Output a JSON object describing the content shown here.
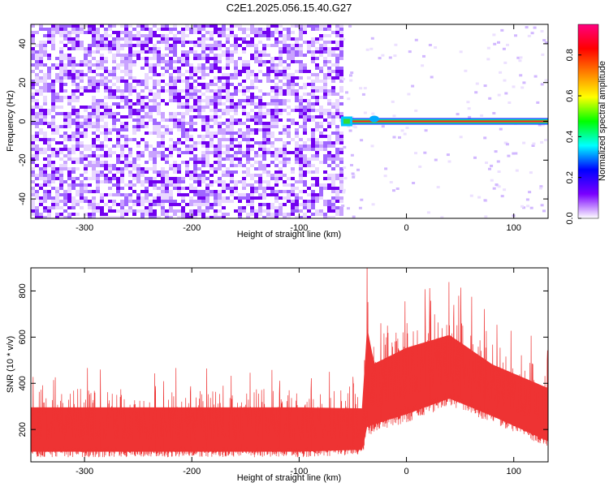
{
  "figure": {
    "title": "C2E1.2025.056.15.40.G27"
  },
  "chart_data": [
    {
      "type": "heatmap",
      "xlabel": "Height of straight line (km)",
      "ylabel": "Frequency (Hz)",
      "xlim": [
        -350,
        132
      ],
      "ylim": [
        -50,
        50
      ],
      "x_ticks": [
        -300,
        -200,
        -100,
        0,
        100
      ],
      "y_ticks": [
        -40,
        -20,
        0,
        20,
        40
      ],
      "noise_region_x": [
        -350,
        -61
      ],
      "signal_line_y": 0,
      "signal_start_x": -61,
      "colorbar": {
        "label": "Normalized spectral amplitude",
        "range": [
          0,
          0.95
        ],
        "ticks": [
          0.0,
          0.2,
          0.4,
          0.6,
          0.8
        ],
        "tick_labels": [
          "0.0",
          "0.2",
          "0.4",
          "0.6",
          "0.8"
        ],
        "colors": [
          "#ffffff",
          "#7a00ff",
          "#0000ff",
          "#00ffff",
          "#00ff00",
          "#ffff00",
          "#ff8000",
          "#ff0000",
          "#ff0080"
        ]
      }
    },
    {
      "type": "line",
      "xlabel": "Height of straight line (km)",
      "ylabel": "SNR (10 * v/v)",
      "xlim": [
        -350,
        132
      ],
      "ylim": [
        60,
        900
      ],
      "x_ticks": [
        -300,
        -200,
        -100,
        0,
        100
      ],
      "y_ticks": [
        200,
        400,
        600,
        800
      ],
      "color": "#ee3333",
      "envelope": [
        {
          "x": -350,
          "low": 80,
          "high": 380
        },
        {
          "x": -300,
          "low": 80,
          "high": 380
        },
        {
          "x": -200,
          "low": 80,
          "high": 380
        },
        {
          "x": -100,
          "low": 80,
          "high": 380
        },
        {
          "x": -40,
          "low": 90,
          "high": 370
        },
        {
          "x": -38,
          "low": 150,
          "high": 880
        },
        {
          "x": -30,
          "low": 190,
          "high": 600
        },
        {
          "x": 0,
          "low": 230,
          "high": 680
        },
        {
          "x": 40,
          "low": 300,
          "high": 730
        },
        {
          "x": 80,
          "low": 230,
          "high": 580
        },
        {
          "x": 132,
          "low": 120,
          "high": 480
        }
      ]
    }
  ]
}
